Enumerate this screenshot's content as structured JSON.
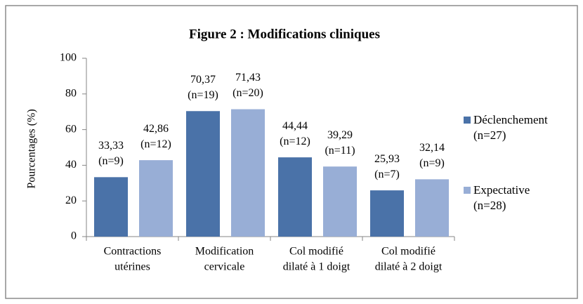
{
  "chart_data": {
    "type": "bar",
    "title": "Figure 2 : Modifications cliniques",
    "y_label": "Pourcentages (%)",
    "categories": [
      [
        "Contractions",
        "utérines"
      ],
      [
        "Modification",
        "cervicale"
      ],
      [
        "Col modifié",
        "dilaté à 1 doigt"
      ],
      [
        "Col modifié",
        "dilaté à 2 doigt"
      ]
    ],
    "series": [
      {
        "name": "Déclenchement (n=27)",
        "color": "#4a72a8",
        "values": [
          33.33,
          70.37,
          44.44,
          25.93
        ],
        "value_labels": [
          [
            "33,33",
            "(n=9)"
          ],
          [
            "70,37",
            "(n=19)"
          ],
          [
            "44,44",
            "(n=12)"
          ],
          [
            "25,93",
            "(n=7)"
          ]
        ]
      },
      {
        "name": "Expectative (n=28)",
        "color": "#98aed6",
        "values": [
          42.86,
          71.43,
          39.29,
          32.14
        ],
        "value_labels": [
          [
            "42,86",
            "(n=12)"
          ],
          [
            "71,43",
            "(n=20)"
          ],
          [
            "39,29",
            "(n=11)"
          ],
          [
            "32,14",
            "(n=9)"
          ]
        ]
      }
    ],
    "ylim": [
      0,
      100
    ],
    "yticks": [
      0,
      20,
      40,
      60,
      80,
      100
    ],
    "grid": false,
    "legend": "right"
  }
}
